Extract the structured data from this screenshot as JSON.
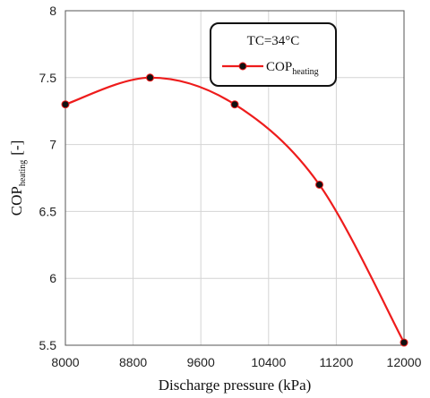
{
  "chart_data": {
    "type": "line",
    "x": [
      8000,
      9000,
      10000,
      11000,
      12000
    ],
    "series": [
      {
        "name": "COPheating",
        "values": [
          7.3,
          7.5,
          7.3,
          6.7,
          5.52
        ],
        "color": "#ee1c1c",
        "marker_color": "#111111"
      }
    ],
    "xlabel": "Discharge pressure (kPa)",
    "ylabel": "COP",
    "ylabel_sub": "heating",
    "ylabel_suffix": "[-]",
    "xlim": [
      8000,
      12000
    ],
    "ylim": [
      5.5,
      8
    ],
    "xticks": [
      8000,
      8800,
      9600,
      10400,
      11200,
      12000
    ],
    "yticks": [
      5.5,
      6,
      6.5,
      7,
      7.5,
      8
    ],
    "ytick_labels": [
      "5.5",
      "6",
      "6.5",
      "7",
      "7.5",
      "8"
    ],
    "grid": true,
    "legend": {
      "title": "TC=34°C",
      "entry_main": "COP",
      "entry_sub": "heating",
      "placement": "top-right"
    }
  }
}
